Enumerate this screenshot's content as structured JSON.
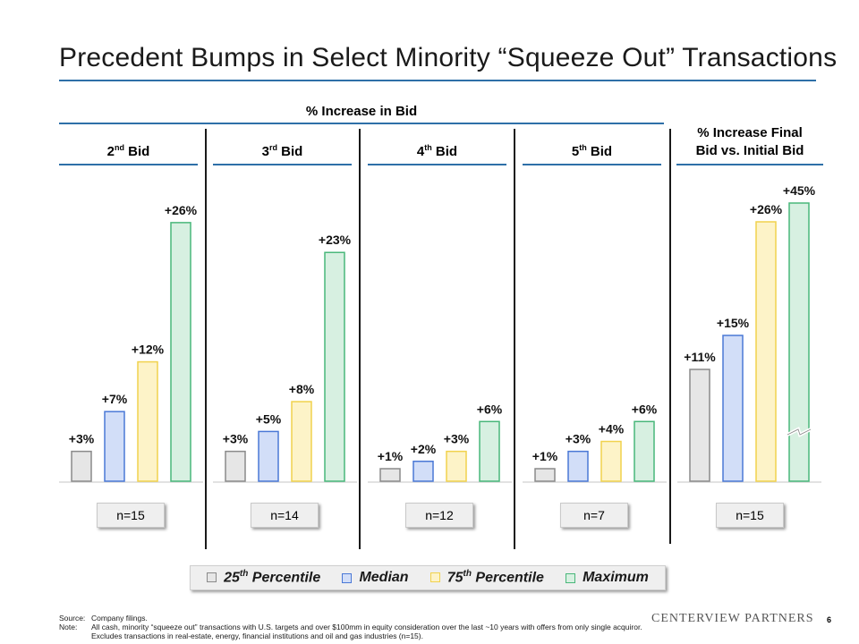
{
  "title": "Precedent Bumps in Select Minority “Squeeze Out” Transactions",
  "header_main": "% Increase in Bid",
  "header_final": [
    "% Increase Final",
    "Bid vs. Initial Bid"
  ],
  "colors": {
    "accent": "#2e6fa8",
    "fills": [
      "#e6e6e6",
      "#d2def8",
      "#fdf3c8",
      "#d7f0e1"
    ],
    "strokes": [
      "#8a8a8a",
      "#4a78d6",
      "#f1d24d",
      "#49b77a"
    ]
  },
  "chart_data": {
    "type": "bar",
    "title": "% Increase in Bid",
    "series_names": [
      "25th Percentile",
      "Median",
      "75th Percentile",
      "Maximum"
    ],
    "groups": [
      {
        "label": "2nd Bid",
        "base": "2",
        "sup": "nd",
        "rest": " Bid",
        "n": "n=15",
        "values": [
          3,
          7,
          12,
          26
        ],
        "labels": [
          "+3%",
          "+7%",
          "+12%",
          "+26%"
        ]
      },
      {
        "label": "3rd Bid",
        "base": "3",
        "sup": "rd",
        "rest": " Bid",
        "n": "n=14",
        "values": [
          3,
          5,
          8,
          23
        ],
        "labels": [
          "+3%",
          "+5%",
          "+8%",
          "+23%"
        ]
      },
      {
        "label": "4th Bid",
        "base": "4",
        "sup": "th",
        "rest": " Bid",
        "n": "n=12",
        "values": [
          1,
          2,
          3,
          6
        ],
        "labels": [
          "+1%",
          "+2%",
          "+3%",
          "+6%"
        ]
      },
      {
        "label": "5th Bid",
        "base": "5",
        "sup": "th",
        "rest": " Bid",
        "n": "n=7",
        "values": [
          1,
          3,
          4,
          6
        ],
        "labels": [
          "+1%",
          "+3%",
          "+4%",
          "+6%"
        ]
      },
      {
        "label": "% Increase Final Bid vs. Initial Bid",
        "n": "n=15",
        "values": [
          11,
          15,
          26,
          45
        ],
        "labels": [
          "+11%",
          "+15%",
          "+26%",
          "+45%"
        ],
        "axis_break": true
      }
    ]
  },
  "legend": {
    "items": [
      {
        "base": "25",
        "sup": "th",
        "rest": " Percentile"
      },
      {
        "base": "Median",
        "sup": "",
        "rest": ""
      },
      {
        "base": "75",
        "sup": "th",
        "rest": " Percentile"
      },
      {
        "base": "Maximum",
        "sup": "",
        "rest": ""
      }
    ]
  },
  "footer": {
    "source_label": "Source:",
    "source_text": "Company filings.",
    "note_label": "Note:",
    "note_text": "All cash, minority “squeeze out” transactions with U.S. targets and over $100mm in equity consideration over the last ~10 years with offers from only single acquiror. Excludes transactions in real-estate, energy, financial institutions and oil and gas industries (n=15)."
  },
  "brand": "CENTERVIEW PARTNERS",
  "page_number": "6"
}
